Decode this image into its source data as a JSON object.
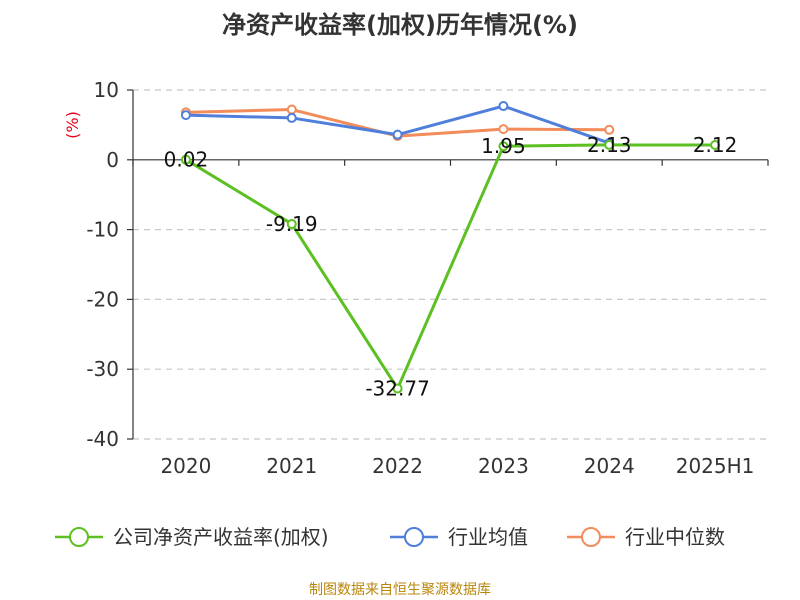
{
  "chart_data": {
    "type": "line",
    "title": "净资产收益率(加权)历年情况(%)",
    "ylabel": "(%)",
    "xlabel": "",
    "categories": [
      "2020",
      "2021",
      "2022",
      "2023",
      "2024",
      "2025H1"
    ],
    "ylim": [
      -40,
      10
    ],
    "yticks": [
      "10",
      "0",
      "-10",
      "-20",
      "-30",
      "-40"
    ],
    "grid": true,
    "legend_position": "bottom",
    "series": [
      {
        "name": "公司净资产收益率(加权)",
        "color": "#5cc022",
        "values": [
          0.02,
          -9.19,
          -32.77,
          1.95,
          2.13,
          2.12
        ],
        "labels": [
          "0.02",
          "-9.19",
          "-32.77",
          "1.95",
          "2.13",
          "2.12"
        ]
      },
      {
        "name": "行业均值",
        "color": "#4f7fdb",
        "values": [
          6.4,
          6.0,
          3.6,
          7.7,
          2.4,
          null
        ]
      },
      {
        "name": "行业中位数",
        "color": "#f28c5a",
        "values": [
          6.8,
          7.2,
          3.4,
          4.4,
          4.3,
          null
        ]
      }
    ]
  },
  "source": "制图数据来自恒生聚源数据库"
}
